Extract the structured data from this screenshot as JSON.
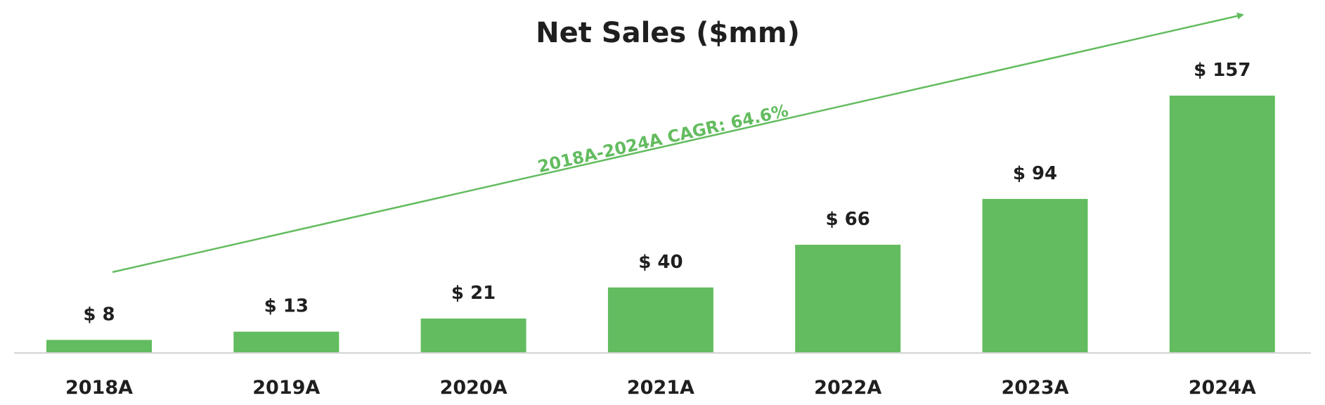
{
  "colors": {
    "bar": "#63bc5f",
    "arrow": "#63bc5f",
    "baseline": "#d4d4d4",
    "text": "#1f1f1f"
  },
  "chart_data": {
    "type": "bar",
    "title": "Net Sales ($mm)",
    "xlabel": "",
    "ylabel": "",
    "categories": [
      "2018A",
      "2019A",
      "2020A",
      "2021A",
      "2022A",
      "2023A",
      "2024A"
    ],
    "values": [
      8,
      13,
      21,
      40,
      66,
      94,
      157
    ],
    "value_labels": [
      "$ 8",
      "$ 13",
      "$ 21",
      "$ 40",
      "$ 66",
      "$ 94",
      "$ 157"
    ],
    "ylim": [
      0,
      200
    ],
    "grid": false,
    "legend": "none",
    "annotation": {
      "text": "2018A-2024A CAGR:  64.6%",
      "kind": "growth-arrow"
    }
  }
}
